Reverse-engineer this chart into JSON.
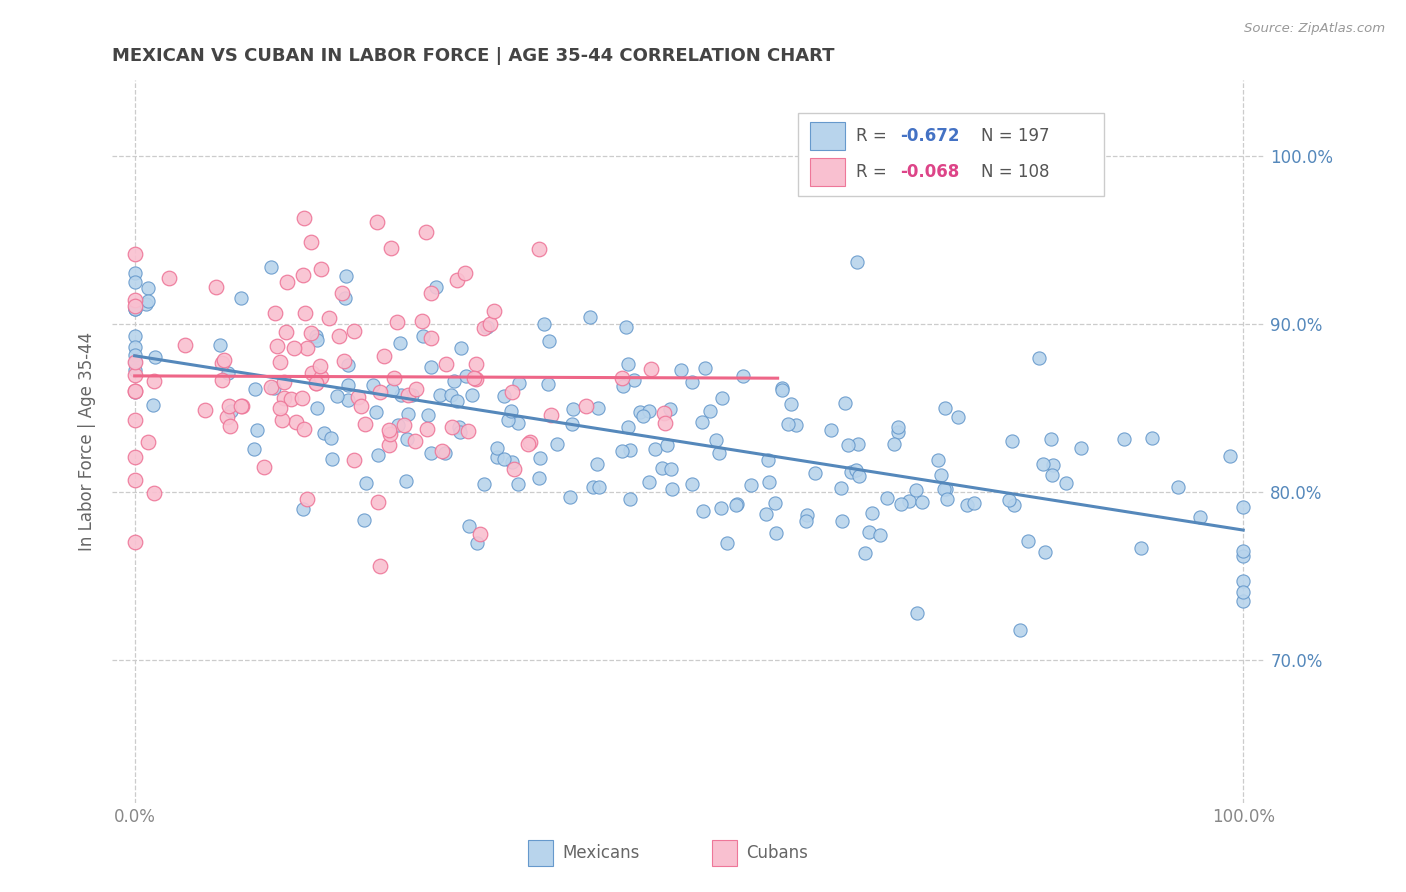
{
  "title": "MEXICAN VS CUBAN IN LABOR FORCE | AGE 35-44 CORRELATION CHART",
  "source": "Source: ZipAtlas.com",
  "ylabel": "In Labor Force | Age 35-44",
  "xlim": [
    -0.02,
    1.02
  ],
  "ylim": [
    0.615,
    1.045
  ],
  "ytick_values": [
    0.7,
    0.8,
    0.9,
    1.0
  ],
  "xtick_values": [
    0.0,
    1.0
  ],
  "xtick_labels": [
    "0.0%",
    "100.0%"
  ],
  "mexican_color": "#b8d4ec",
  "cuban_color": "#f9c0d0",
  "mexican_edge": "#6699cc",
  "cuban_edge": "#ee7799",
  "title_color": "#444444",
  "source_color": "#999999",
  "grid_color": "#cccccc",
  "r_mexican": -0.672,
  "n_mexican": 197,
  "r_cuban": -0.068,
  "n_cuban": 108,
  "mexican_line_color": "#5588bb",
  "cuban_line_color": "#ee6688",
  "legend_r_color_mexican": "#4472c4",
  "legend_r_color_cuban": "#dd4488",
  "legend_n_color": "#555555",
  "tick_color": "#5588bb",
  "ytick_color_right": "#5588bb"
}
